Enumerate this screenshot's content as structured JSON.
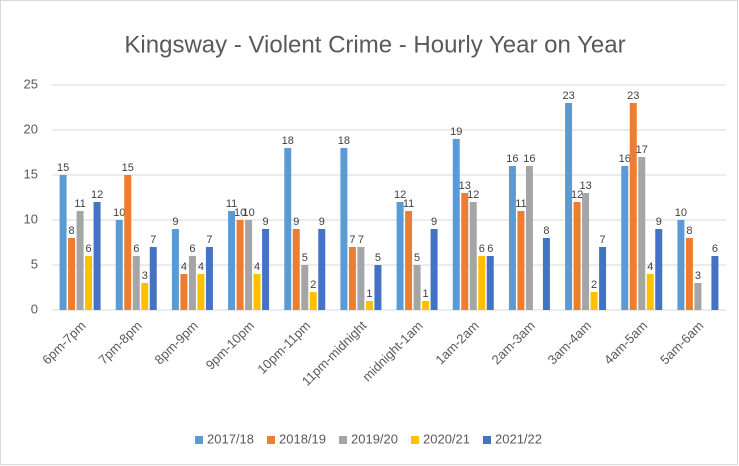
{
  "chart_data": {
    "type": "bar",
    "title": "Kingsway - Violent Crime - Hourly Year on Year",
    "categories": [
      "6pm-7pm",
      "7pm-8pm",
      "8pm-9pm",
      "9pm-10pm",
      "10pm-11pm",
      "11pm-midnight",
      "midnight-1am",
      "1am-2am",
      "2am-3am",
      "3am-4am",
      "4am-5am",
      "5am-6am"
    ],
    "series": [
      {
        "name": "2017/18",
        "color": "#5b9bd5",
        "values": [
          15,
          10,
          9,
          11,
          18,
          18,
          12,
          19,
          16,
          23,
          16,
          10
        ]
      },
      {
        "name": "2018/19",
        "color": "#ed7d31",
        "values": [
          8,
          15,
          4,
          10,
          9,
          7,
          11,
          13,
          11,
          12,
          23,
          8
        ]
      },
      {
        "name": "2019/20",
        "color": "#a5a5a5",
        "values": [
          11,
          6,
          6,
          10,
          5,
          7,
          5,
          12,
          16,
          13,
          17,
          3
        ]
      },
      {
        "name": "2020/21",
        "color": "#ffc000",
        "values": [
          6,
          3,
          4,
          4,
          2,
          1,
          1,
          6,
          null,
          2,
          4,
          null
        ]
      },
      {
        "name": "2021/22",
        "color": "#4472c4",
        "values": [
          12,
          7,
          7,
          9,
          9,
          5,
          9,
          6,
          8,
          7,
          9,
          6
        ]
      }
    ],
    "ylim": [
      0,
      25
    ],
    "yticks": [
      0,
      5,
      10,
      15,
      20,
      25
    ],
    "grid": true,
    "legend": "bottom"
  }
}
